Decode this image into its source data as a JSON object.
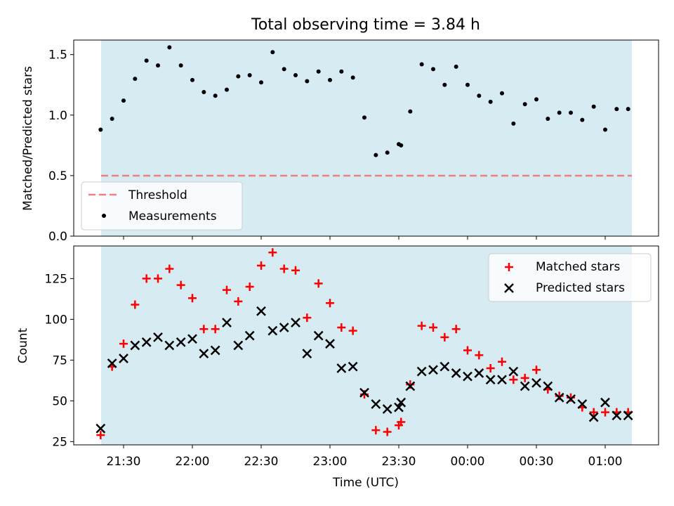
{
  "title": "Total observing time = 3.84 h",
  "colors": {
    "shade": "#add8e6",
    "threshold": "#f08080",
    "measurement": "#000000",
    "matched": "#ff0000",
    "predicted": "#000000"
  },
  "chart_data": [
    {
      "type": "scatter",
      "ylabel": "Matched/Predicted stars",
      "ylim": [
        0,
        1.62
      ],
      "yticks": [
        "0.0",
        "0.5",
        "1.0",
        "1.5"
      ],
      "shaded_span": [
        "21:20",
        "01:10"
      ],
      "threshold": 0.5,
      "legend": {
        "placement": "lower-left",
        "entries": [
          "Threshold",
          "Measurements"
        ]
      },
      "series": [
        {
          "name": "Measurements",
          "marker": "dot",
          "x": [
            "21:20",
            "21:25",
            "21:30",
            "21:35",
            "21:40",
            "21:45",
            "21:50",
            "21:55",
            "22:00",
            "22:05",
            "22:10",
            "22:15",
            "22:20",
            "22:25",
            "22:30",
            "22:35",
            "22:40",
            "22:45",
            "22:50",
            "22:55",
            "23:00",
            "23:05",
            "23:10",
            "23:15",
            "23:20",
            "23:25",
            "23:30",
            "23:31",
            "23:35",
            "23:40",
            "23:45",
            "23:50",
            "23:55",
            "00:00",
            "00:05",
            "00:10",
            "00:15",
            "00:20",
            "00:25",
            "00:30",
            "00:35",
            "00:40",
            "00:45",
            "00:50",
            "00:55",
            "01:00",
            "01:05",
            "01:10"
          ],
          "y": [
            0.88,
            0.97,
            1.12,
            1.3,
            1.45,
            1.41,
            1.56,
            1.41,
            1.29,
            1.19,
            1.16,
            1.21,
            1.32,
            1.33,
            1.27,
            1.52,
            1.38,
            1.33,
            1.28,
            1.36,
            1.29,
            1.36,
            1.31,
            0.98,
            0.67,
            0.69,
            0.76,
            0.75,
            1.03,
            1.42,
            1.38,
            1.25,
            1.4,
            1.25,
            1.16,
            1.11,
            1.18,
            0.93,
            1.09,
            1.13,
            0.97,
            1.02,
            1.02,
            0.96,
            1.07,
            0.88,
            1.05,
            1.05
          ]
        }
      ]
    },
    {
      "type": "scatter",
      "xlabel": "Time (UTC)",
      "ylabel": "Count",
      "ylim": [
        23,
        145
      ],
      "yticks": [
        "25",
        "50",
        "75",
        "100",
        "125"
      ],
      "xticks": [
        "21:30",
        "22:00",
        "22:30",
        "23:00",
        "23:30",
        "00:00",
        "00:30",
        "01:00"
      ],
      "shaded_span": [
        "21:20",
        "01:10"
      ],
      "legend": {
        "placement": "upper-right",
        "entries": [
          "Matched stars",
          "Predicted stars"
        ]
      },
      "series": [
        {
          "name": "Matched stars",
          "marker": "plus",
          "x": [
            "21:20",
            "21:25",
            "21:30",
            "21:35",
            "21:40",
            "21:45",
            "21:50",
            "21:55",
            "22:00",
            "22:05",
            "22:10",
            "22:15",
            "22:20",
            "22:25",
            "22:30",
            "22:35",
            "22:40",
            "22:45",
            "22:50",
            "22:55",
            "23:00",
            "23:05",
            "23:10",
            "23:15",
            "23:20",
            "23:25",
            "23:30",
            "23:31",
            "23:35",
            "23:40",
            "23:45",
            "23:50",
            "23:55",
            "00:00",
            "00:05",
            "00:10",
            "00:15",
            "00:20",
            "00:25",
            "00:30",
            "00:35",
            "00:40",
            "00:45",
            "00:50",
            "00:55",
            "01:00",
            "01:05",
            "01:10"
          ],
          "y": [
            29,
            71,
            85,
            109,
            125,
            125,
            131,
            121,
            113,
            94,
            94,
            118,
            111,
            120,
            133,
            141,
            131,
            130,
            101,
            122,
            110,
            95,
            93,
            54,
            32,
            31,
            35,
            37,
            60,
            96,
            95,
            89,
            94,
            81,
            78,
            70,
            74,
            63,
            64,
            69,
            57,
            53,
            52,
            46,
            43,
            43,
            43,
            43
          ]
        },
        {
          "name": "Predicted stars",
          "marker": "x",
          "x": [
            "21:20",
            "21:25",
            "21:30",
            "21:35",
            "21:40",
            "21:45",
            "21:50",
            "21:55",
            "22:00",
            "22:05",
            "22:10",
            "22:15",
            "22:20",
            "22:25",
            "22:30",
            "22:35",
            "22:40",
            "22:45",
            "22:50",
            "22:55",
            "23:00",
            "23:05",
            "23:10",
            "23:15",
            "23:20",
            "23:25",
            "23:30",
            "23:31",
            "23:35",
            "23:40",
            "23:45",
            "23:50",
            "23:55",
            "00:00",
            "00:05",
            "00:10",
            "00:15",
            "00:20",
            "00:25",
            "00:30",
            "00:35",
            "00:40",
            "00:45",
            "00:50",
            "00:55",
            "01:00",
            "01:05",
            "01:10"
          ],
          "y": [
            33,
            73,
            76,
            84,
            86,
            89,
            84,
            86,
            88,
            79,
            81,
            98,
            84,
            90,
            105,
            93,
            95,
            98,
            79,
            90,
            85,
            70,
            71,
            55,
            48,
            45,
            46,
            49,
            59,
            68,
            69,
            71,
            67,
            65,
            67,
            63,
            63,
            68,
            59,
            61,
            59,
            52,
            51,
            48,
            40,
            49,
            41,
            41
          ]
        }
      ]
    }
  ]
}
